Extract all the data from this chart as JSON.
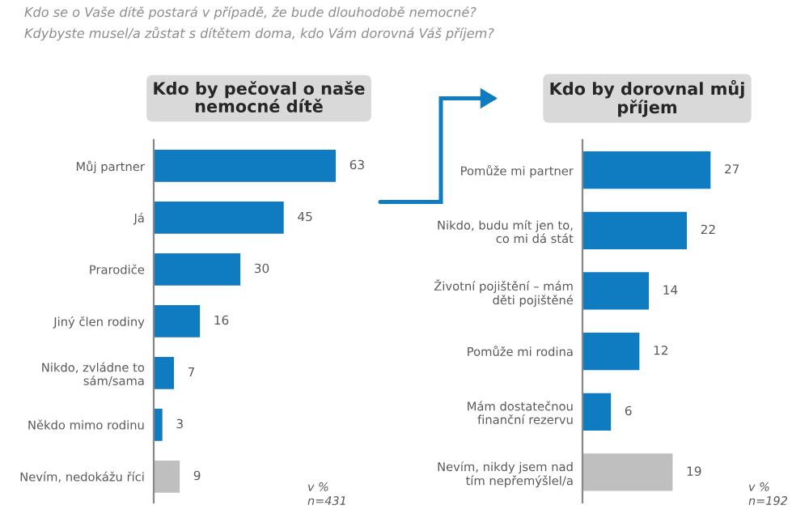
{
  "chart_data": [
    {
      "type": "bar",
      "orientation": "horizontal",
      "title": "Kdo by pečoval o naše\nnemocné dítě",
      "categories": [
        "Můj partner",
        "Já",
        "Prarodiče",
        "Jiný člen rodiny",
        "Nikdo, zvládne to\nsám/sama",
        "Někdo mimo rodinu",
        "Nevím, nedokážu říci"
      ],
      "values": [
        63,
        45,
        30,
        16,
        7,
        3,
        9
      ],
      "colors": [
        "#0f7bc1",
        "#0f7bc1",
        "#0f7bc1",
        "#0f7bc1",
        "#0f7bc1",
        "#0f7bc1",
        "#bfbfbf"
      ],
      "data_labels": true,
      "tick_labels": "y",
      "grid": false,
      "legend": false,
      "annotations": [
        "Kdo se o Vaše dítě postará v případě, že bude dlouhodobě nemocné?",
        "v %\nn=431"
      ]
    },
    {
      "type": "bar",
      "orientation": "horizontal",
      "title": "Kdo by dorovnal můj\npříjem",
      "categories": [
        "Pomůže mi partner",
        "Nikdo, budu mít jen to,\nco mi dá stát",
        "Životní pojištění – mám\nděti pojištěné",
        "Pomůže mi rodina",
        "Mám dostatečnou\nfinanční rezervu",
        "Nevím, nikdy jsem nad\ntím nepřemýšlel/a"
      ],
      "values": [
        27,
        22,
        14,
        12,
        6,
        19
      ],
      "colors": [
        "#0f7bc1",
        "#0f7bc1",
        "#0f7bc1",
        "#0f7bc1",
        "#0f7bc1",
        "#bfbfbf"
      ],
      "data_labels": true,
      "tick_labels": "y",
      "grid": false,
      "legend": false,
      "annotations": [
        "Kdybyste musel/a zůstat s dítětem doma, kdo Vám dorovná Váš příjem?",
        "v %\nn=192"
      ]
    }
  ]
}
